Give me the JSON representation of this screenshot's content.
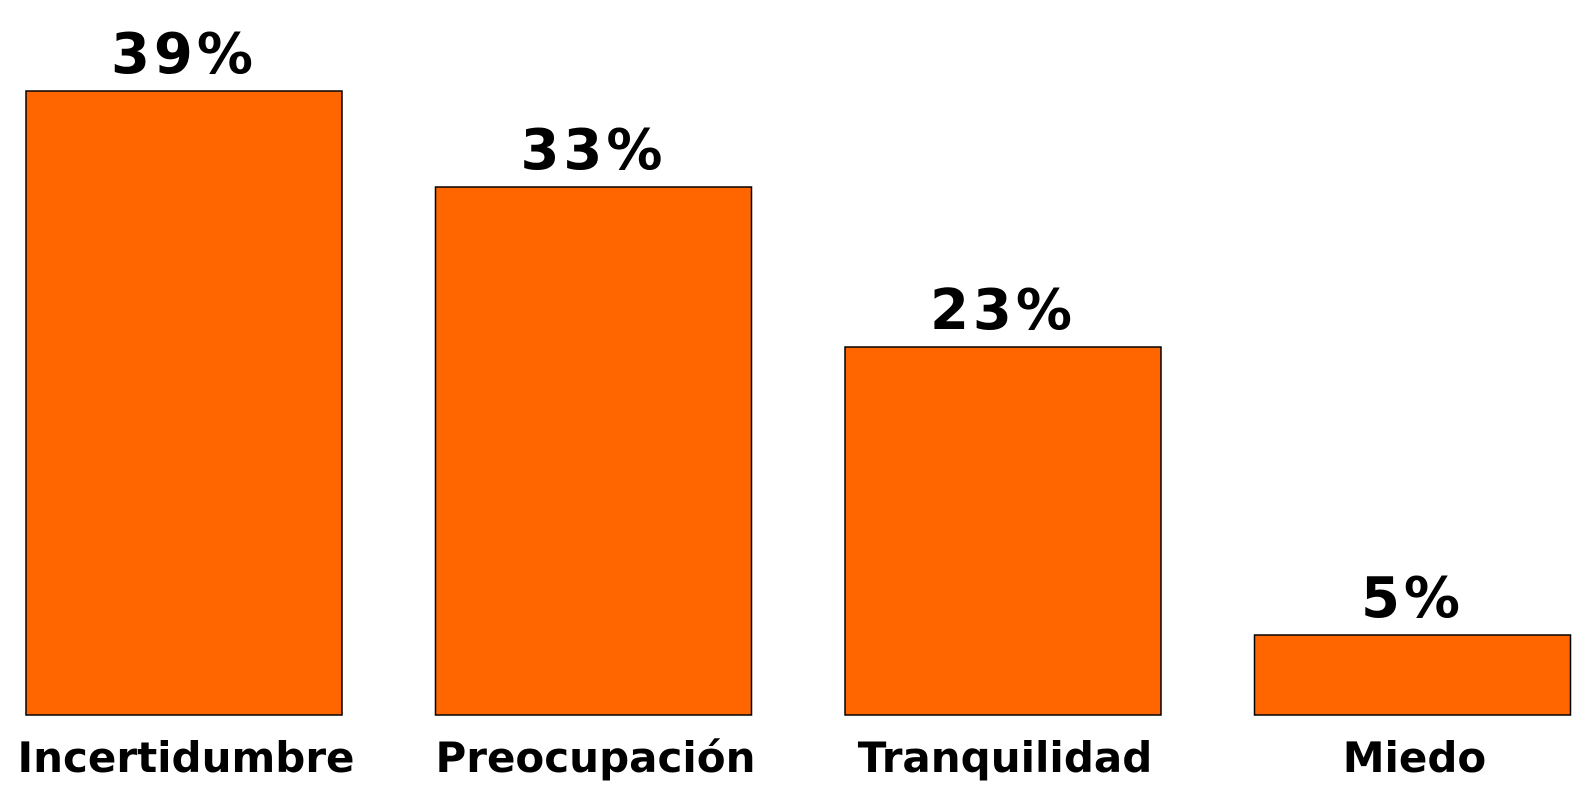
{
  "chart_data": {
    "type": "bar",
    "categories": [
      "Incertidumbre",
      "Preocupación",
      "Tranquilidad",
      "Miedo"
    ],
    "values": [
      39,
      33,
      23,
      5
    ],
    "value_labels": [
      "39%",
      "33%",
      "23%",
      "5%"
    ],
    "color": "#ff6600"
  }
}
